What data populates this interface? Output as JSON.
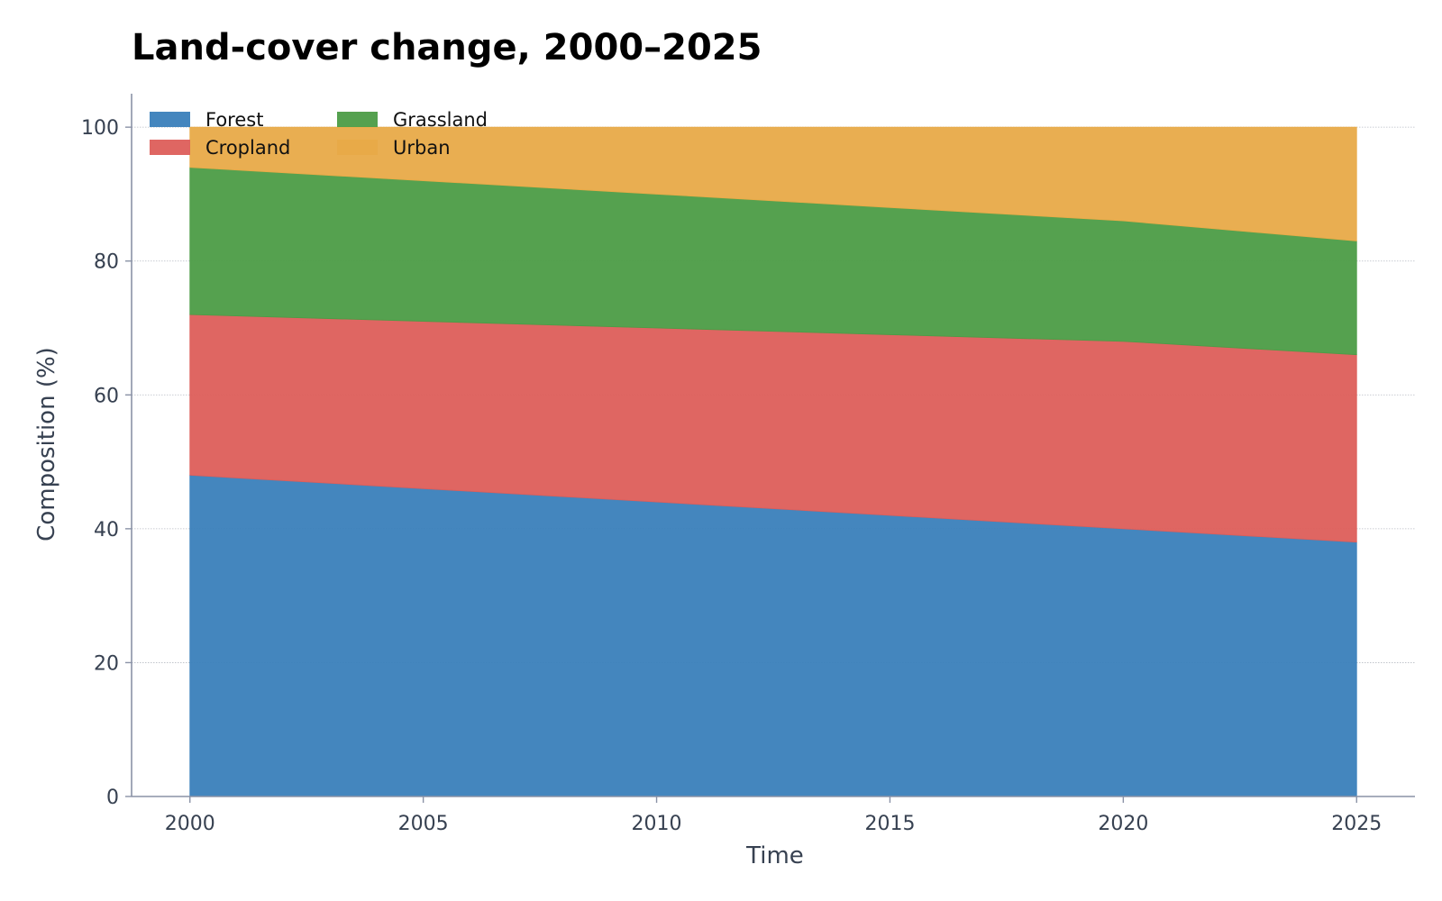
{
  "chart_data": {
    "type": "area",
    "stacked": true,
    "title": "Land-cover change, 2000–2025",
    "xlabel": "Time",
    "ylabel": "Composition (%)",
    "x": [
      2000,
      2005,
      2010,
      2015,
      2020,
      2025
    ],
    "xlim": [
      1998.75,
      2026.25
    ],
    "ylim": [
      0,
      105
    ],
    "xticks": [
      2000,
      2005,
      2010,
      2015,
      2020,
      2025
    ],
    "yticks": [
      0,
      20,
      40,
      60,
      80,
      100
    ],
    "grid": "horizontal dotted",
    "legend_position": "top-left",
    "series": [
      {
        "name": "Forest",
        "color": "#3a80bb",
        "values": [
          48,
          46,
          44,
          42,
          40,
          38
        ]
      },
      {
        "name": "Cropland",
        "color": "#dd5e5a",
        "values": [
          24,
          25,
          26,
          27,
          28,
          28
        ]
      },
      {
        "name": "Grassland",
        "color": "#4c9c46",
        "values": [
          22,
          21,
          20,
          19,
          18,
          17
        ]
      },
      {
        "name": "Urban",
        "color": "#e8aa48",
        "values": [
          6,
          8,
          10,
          12,
          14,
          17
        ]
      }
    ]
  }
}
